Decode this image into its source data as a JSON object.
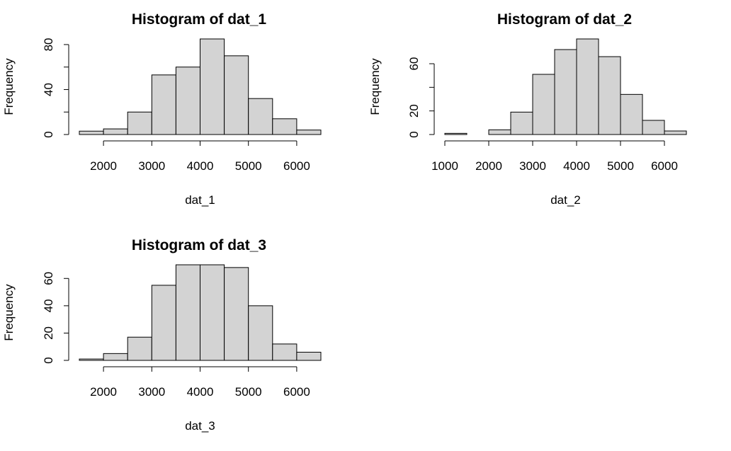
{
  "chart_data": [
    {
      "type": "bar",
      "title": "Histogram of dat_1",
      "xlabel": "dat_1",
      "ylabel": "Frequency",
      "xlim": [
        1500,
        6500
      ],
      "xticks": [
        2000,
        3000,
        4000,
        5000,
        6000
      ],
      "yticks": [
        0,
        40,
        80
      ],
      "ylim": [
        0,
        85
      ],
      "bins": [
        {
          "x0": 1500,
          "x1": 2000,
          "count": 3
        },
        {
          "x0": 2000,
          "x1": 2500,
          "count": 5
        },
        {
          "x0": 2500,
          "x1": 3000,
          "count": 20
        },
        {
          "x0": 3000,
          "x1": 3500,
          "count": 53
        },
        {
          "x0": 3500,
          "x1": 4000,
          "count": 60
        },
        {
          "x0": 4000,
          "x1": 4500,
          "count": 85
        },
        {
          "x0": 4500,
          "x1": 5000,
          "count": 70
        },
        {
          "x0": 5000,
          "x1": 5500,
          "count": 32
        },
        {
          "x0": 5500,
          "x1": 6000,
          "count": 14
        },
        {
          "x0": 6000,
          "x1": 6500,
          "count": 4
        }
      ],
      "bar_color": "#d3d3d3",
      "grid": false
    },
    {
      "type": "bar",
      "title": "Histogram of dat_2",
      "xlabel": "dat_2",
      "ylabel": "Frequency",
      "xlim": [
        1000,
        6500
      ],
      "xticks": [
        1000,
        2000,
        3000,
        4000,
        5000,
        6000
      ],
      "yticks": [
        0,
        20,
        60
      ],
      "ylim": [
        0,
        81
      ],
      "bins": [
        {
          "x0": 1000,
          "x1": 1500,
          "count": 1
        },
        {
          "x0": 1500,
          "x1": 2000,
          "count": 0
        },
        {
          "x0": 2000,
          "x1": 2500,
          "count": 4
        },
        {
          "x0": 2500,
          "x1": 3000,
          "count": 19
        },
        {
          "x0": 3000,
          "x1": 3500,
          "count": 51
        },
        {
          "x0": 3500,
          "x1": 4000,
          "count": 72
        },
        {
          "x0": 4000,
          "x1": 4500,
          "count": 81
        },
        {
          "x0": 4500,
          "x1": 5000,
          "count": 66
        },
        {
          "x0": 5000,
          "x1": 5500,
          "count": 34
        },
        {
          "x0": 5500,
          "x1": 6000,
          "count": 12
        },
        {
          "x0": 6000,
          "x1": 6500,
          "count": 3
        }
      ],
      "bar_color": "#d3d3d3",
      "grid": false
    },
    {
      "type": "bar",
      "title": "Histogram of dat_3",
      "xlabel": "dat_3",
      "ylabel": "Frequency",
      "xlim": [
        1500,
        6500
      ],
      "xticks": [
        2000,
        3000,
        4000,
        5000,
        6000
      ],
      "yticks": [
        0,
        20,
        40,
        60
      ],
      "ylim": [
        0,
        70
      ],
      "bins": [
        {
          "x0": 1500,
          "x1": 2000,
          "count": 1
        },
        {
          "x0": 2000,
          "x1": 2500,
          "count": 5
        },
        {
          "x0": 2500,
          "x1": 3000,
          "count": 17
        },
        {
          "x0": 3000,
          "x1": 3500,
          "count": 55
        },
        {
          "x0": 3500,
          "x1": 4000,
          "count": 70
        },
        {
          "x0": 4000,
          "x1": 4500,
          "count": 70
        },
        {
          "x0": 4500,
          "x1": 5000,
          "count": 68
        },
        {
          "x0": 5000,
          "x1": 5500,
          "count": 40
        },
        {
          "x0": 5500,
          "x1": 6000,
          "count": 12
        },
        {
          "x0": 6000,
          "x1": 6500,
          "count": 6
        }
      ],
      "bar_color": "#d3d3d3",
      "grid": false
    }
  ]
}
